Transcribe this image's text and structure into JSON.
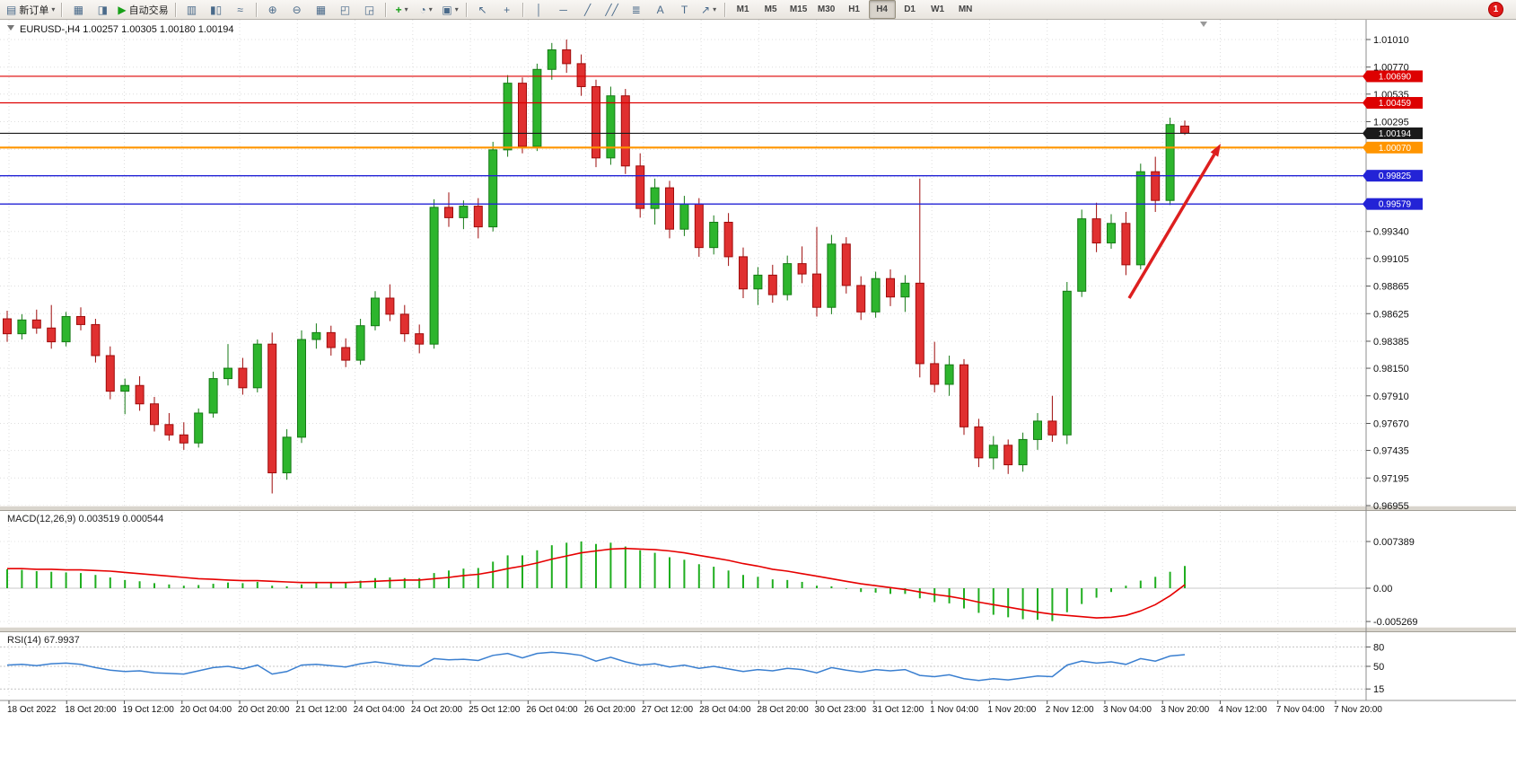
{
  "toolbar": {
    "new_order_label": "新订单",
    "autotrading_label": "自动交易",
    "timeframes": [
      "M1",
      "M5",
      "M15",
      "M30",
      "H1",
      "H4",
      "D1",
      "W1",
      "MN"
    ],
    "active_timeframe": "H4",
    "notification_count": "1",
    "icons": {
      "new_order": "▤",
      "charts_grid": "▦",
      "market_watch": "◨",
      "autotrading_play": "▶",
      "bar_chart": "▥",
      "candle_chart": "▮▯",
      "line_chart": "≈",
      "zoom_in": "⊕",
      "zoom_out": "⊖",
      "tile_windows": "▦",
      "indicator_window": "◰",
      "objects_window": "◲",
      "add_indicator": "+",
      "periods": "◔",
      "templates": "▣",
      "cursor": "↖",
      "crosshair": "+",
      "vline": "│",
      "hline": "─",
      "trendline": "╱",
      "channel": "╱╱",
      "fibonacci": "≣",
      "text": "A",
      "label": "T",
      "arrows": "↗",
      "dropdown": "▾"
    }
  },
  "chart_data": {
    "type": "candlestick",
    "symbol": "EURUSD",
    "timeframe": "H4",
    "title": "EURUSD-,H4",
    "ohlc_text": "1.00257 1.00305 1.00180 1.00194",
    "ohlc_header": {
      "open": "1.00257",
      "high": "1.00305",
      "low": "1.00180",
      "close": "1.00194"
    },
    "price_ticks": [
      "1.01010",
      "1.00770",
      "1.00535",
      "1.00295",
      "1.00055",
      "0.99815",
      "0.99580",
      "0.99340",
      "0.99105",
      "0.98865",
      "0.98625",
      "0.98385",
      "0.98150",
      "0.97910",
      "0.97670",
      "0.97435",
      "0.97195",
      "0.96955"
    ],
    "time_labels": [
      "18 Oct 2022",
      "18 Oct 20:00",
      "19 Oct 12:00",
      "20 Oct 04:00",
      "20 Oct 20:00",
      "21 Oct 12:00",
      "24 Oct 04:00",
      "24 Oct 20:00",
      "25 Oct 12:00",
      "26 Oct 04:00",
      "26 Oct 20:00",
      "27 Oct 12:00",
      "28 Oct 04:00",
      "28 Oct 20:00",
      "30 Oct 23:00",
      "31 Oct 12:00",
      "1 Nov 04:00",
      "1 Nov 20:00",
      "2 Nov 12:00",
      "3 Nov 04:00",
      "3 Nov 20:00",
      "4 Nov 12:00",
      "7 Nov 04:00",
      "7 Nov 20:00"
    ],
    "levels": [
      {
        "price": 1.0069,
        "label": "1.00690",
        "color": "#dd0000",
        "width": 1.2
      },
      {
        "price": 1.00459,
        "label": "1.00459",
        "color": "#dd0000",
        "width": 1.2
      },
      {
        "price": 1.00194,
        "label": "1.00194",
        "color": "#1a1a1a",
        "width": 1.2
      },
      {
        "price": 1.0007,
        "label": "1.00070",
        "color": "#ff9500",
        "width": 2.2
      },
      {
        "price": 0.99825,
        "label": "0.99825",
        "color": "#2323d6",
        "width": 1.4
      },
      {
        "price": 0.99579,
        "label": "0.99579",
        "color": "#2323d6",
        "width": 1.4
      }
    ],
    "arrow": {
      "from": [
        1258,
        310
      ],
      "to": [
        1360,
        138
      ],
      "color": "#dd1f1f"
    },
    "candles": [
      [
        0.9858,
        0.9865,
        0.9838,
        0.9845
      ],
      [
        0.9845,
        0.9862,
        0.984,
        0.9857
      ],
      [
        0.9857,
        0.9866,
        0.9845,
        0.985
      ],
      [
        0.985,
        0.987,
        0.9832,
        0.9838
      ],
      [
        0.9838,
        0.9864,
        0.9834,
        0.986
      ],
      [
        0.986,
        0.9868,
        0.9848,
        0.9853
      ],
      [
        0.9853,
        0.9858,
        0.982,
        0.9826
      ],
      [
        0.9826,
        0.9834,
        0.9788,
        0.9795
      ],
      [
        0.9795,
        0.9806,
        0.9775,
        0.98
      ],
      [
        0.98,
        0.9808,
        0.9778,
        0.9784
      ],
      [
        0.9784,
        0.979,
        0.976,
        0.9766
      ],
      [
        0.9766,
        0.9776,
        0.9752,
        0.9757
      ],
      [
        0.9757,
        0.9768,
        0.9744,
        0.975
      ],
      [
        0.975,
        0.978,
        0.9746,
        0.9776
      ],
      [
        0.9776,
        0.9812,
        0.9772,
        0.9806
      ],
      [
        0.9806,
        0.9836,
        0.98,
        0.9815
      ],
      [
        0.9815,
        0.9824,
        0.9792,
        0.9798
      ],
      [
        0.9798,
        0.984,
        0.9794,
        0.9836
      ],
      [
        0.9836,
        0.9846,
        0.9706,
        0.9724
      ],
      [
        0.9724,
        0.9762,
        0.9718,
        0.9755
      ],
      [
        0.9755,
        0.9848,
        0.975,
        0.984
      ],
      [
        0.984,
        0.9854,
        0.9832,
        0.9846
      ],
      [
        0.9846,
        0.9852,
        0.9826,
        0.9833
      ],
      [
        0.9833,
        0.9841,
        0.9816,
        0.9822
      ],
      [
        0.9822,
        0.9858,
        0.9818,
        0.9852
      ],
      [
        0.9852,
        0.9882,
        0.9848,
        0.9876
      ],
      [
        0.9876,
        0.9888,
        0.9856,
        0.9862
      ],
      [
        0.9862,
        0.987,
        0.9838,
        0.9845
      ],
      [
        0.9845,
        0.9853,
        0.9828,
        0.9836
      ],
      [
        0.9836,
        0.9962,
        0.9832,
        0.9955
      ],
      [
        0.9955,
        0.9968,
        0.9938,
        0.9946
      ],
      [
        0.9946,
        0.9961,
        0.9936,
        0.9956
      ],
      [
        0.9956,
        0.9963,
        0.9928,
        0.9938
      ],
      [
        0.9938,
        1.0012,
        0.9934,
        1.0005
      ],
      [
        1.0005,
        1.007,
        0.9999,
        1.0063
      ],
      [
        1.0063,
        1.0068,
        1.0002,
        1.0008
      ],
      [
        1.0008,
        1.008,
        1.0004,
        1.0075
      ],
      [
        1.0075,
        1.0098,
        1.0066,
        1.0092
      ],
      [
        1.0092,
        1.0101,
        1.0072,
        1.008
      ],
      [
        1.008,
        1.0088,
        1.0052,
        1.006
      ],
      [
        1.006,
        1.0066,
        0.999,
        0.9998
      ],
      [
        0.9998,
        1.006,
        0.9992,
        1.0052
      ],
      [
        1.0052,
        1.0058,
        0.9984,
        0.9991
      ],
      [
        0.9991,
        1.0002,
        0.9946,
        0.9954
      ],
      [
        0.9954,
        0.998,
        0.994,
        0.9972
      ],
      [
        0.9972,
        0.9978,
        0.9928,
        0.9936
      ],
      [
        0.9936,
        0.9965,
        0.993,
        0.9958
      ],
      [
        0.9958,
        0.9963,
        0.9912,
        0.992
      ],
      [
        0.992,
        0.9948,
        0.9914,
        0.9942
      ],
      [
        0.9942,
        0.995,
        0.9904,
        0.9912
      ],
      [
        0.9912,
        0.992,
        0.9876,
        0.9884
      ],
      [
        0.9884,
        0.9903,
        0.987,
        0.9896
      ],
      [
        0.9896,
        0.9905,
        0.9872,
        0.9879
      ],
      [
        0.9879,
        0.9913,
        0.9874,
        0.9906
      ],
      [
        0.9906,
        0.9921,
        0.9889,
        0.9897
      ],
      [
        0.9897,
        0.9938,
        0.986,
        0.9868
      ],
      [
        0.9868,
        0.9931,
        0.9862,
        0.9923
      ],
      [
        0.9923,
        0.9929,
        0.988,
        0.9887
      ],
      [
        0.9887,
        0.9895,
        0.9857,
        0.9864
      ],
      [
        0.9864,
        0.9899,
        0.9859,
        0.9893
      ],
      [
        0.9893,
        0.9901,
        0.9869,
        0.9877
      ],
      [
        0.9877,
        0.9896,
        0.9864,
        0.9889
      ],
      [
        0.9889,
        0.998,
        0.9807,
        0.9819
      ],
      [
        0.9819,
        0.9838,
        0.9794,
        0.9801
      ],
      [
        0.9801,
        0.9826,
        0.9791,
        0.9818
      ],
      [
        0.9818,
        0.9823,
        0.9757,
        0.9764
      ],
      [
        0.9764,
        0.9771,
        0.9729,
        0.9737
      ],
      [
        0.9737,
        0.9756,
        0.9727,
        0.9748
      ],
      [
        0.9748,
        0.9753,
        0.9723,
        0.9731
      ],
      [
        0.9731,
        0.9759,
        0.9725,
        0.9753
      ],
      [
        0.9753,
        0.9776,
        0.9744,
        0.9769
      ],
      [
        0.9769,
        0.9791,
        0.9751,
        0.9757
      ],
      [
        0.9757,
        0.989,
        0.9749,
        0.9882
      ],
      [
        0.9882,
        0.9953,
        0.9877,
        0.9945
      ],
      [
        0.9945,
        0.9959,
        0.9916,
        0.9924
      ],
      [
        0.9924,
        0.9949,
        0.9919,
        0.9941
      ],
      [
        0.9941,
        0.9951,
        0.9896,
        0.9905
      ],
      [
        0.9905,
        0.9993,
        0.9901,
        0.9986
      ],
      [
        0.9986,
        0.9999,
        0.9951,
        0.9961
      ],
      [
        0.9961,
        1.0033,
        0.9957,
        1.0027
      ],
      [
        1.00257,
        1.00305,
        1.0018,
        1.00194
      ]
    ],
    "macd": {
      "label": "MACD(12,26,9) 0.003519 0.000544",
      "axis": [
        {
          "label": "0.007389",
          "value": 0.007389
        },
        {
          "label": "0.00",
          "value": 0
        },
        {
          "label": "-0.005269",
          "value": -0.005269
        }
      ],
      "values": [
        0.003,
        0.0029,
        0.0027,
        0.0026,
        0.0025,
        0.0024,
        0.0021,
        0.0017,
        0.0013,
        0.0011,
        0.0008,
        0.0006,
        0.0004,
        0.0005,
        0.0007,
        0.0009,
        0.0008,
        0.001,
        0.0004,
        0.0003,
        0.0006,
        0.0009,
        0.001,
        0.0009,
        0.0012,
        0.0016,
        0.0017,
        0.0016,
        0.0016,
        0.0024,
        0.0028,
        0.0031,
        0.0032,
        0.0042,
        0.0052,
        0.0052,
        0.006,
        0.0068,
        0.0072,
        0.0074,
        0.007,
        0.0072,
        0.0066,
        0.006,
        0.0056,
        0.0049,
        0.0045,
        0.0038,
        0.0034,
        0.0028,
        0.0021,
        0.0018,
        0.0014,
        0.0013,
        0.001,
        0.0004,
        0.0003,
        -0.0001,
        -0.0006,
        -0.0007,
        -0.0009,
        -0.0009,
        -0.0016,
        -0.0022,
        -0.0024,
        -0.0032,
        -0.0039,
        -0.0042,
        -0.0046,
        -0.0049,
        -0.005,
        -0.0052,
        -0.0038,
        -0.0025,
        -0.0015,
        -0.0006,
        0.0004,
        0.0012,
        0.0018,
        0.0026,
        0.003519
      ],
      "signal": [
        0.0031,
        0.0031,
        0.003,
        0.003,
        0.0029,
        0.0029,
        0.0028,
        0.0027,
        0.0025,
        0.0023,
        0.0021,
        0.0019,
        0.0017,
        0.0015,
        0.0014,
        0.0013,
        0.0012,
        0.0012,
        0.0011,
        0.001,
        0.0009,
        0.0009,
        0.0009,
        0.0009,
        0.001,
        0.0011,
        0.0012,
        0.0013,
        0.0013,
        0.0015,
        0.0017,
        0.002,
        0.0022,
        0.0026,
        0.0031,
        0.0035,
        0.004,
        0.0046,
        0.0051,
        0.0056,
        0.0059,
        0.0062,
        0.0063,
        0.0062,
        0.0061,
        0.0059,
        0.0056,
        0.0052,
        0.0048,
        0.0044,
        0.0039,
        0.0035,
        0.003,
        0.0027,
        0.0023,
        0.0019,
        0.0015,
        0.0011,
        0.0007,
        0.0004,
        0.0001,
        -0.0002,
        -0.0006,
        -0.001,
        -0.0013,
        -0.0017,
        -0.0022,
        -0.0026,
        -0.003,
        -0.0034,
        -0.0038,
        -0.0041,
        -0.0043,
        -0.0045,
        -0.0047,
        -0.0046,
        -0.0043,
        -0.0036,
        -0.0026,
        -0.0012,
        0.000544
      ]
    },
    "rsi": {
      "label": "RSI(14) 67.9937",
      "levels": [
        {
          "label": "80",
          "value": 80
        },
        {
          "label": "50",
          "value": 50
        },
        {
          "label": "15",
          "value": 15
        }
      ],
      "values": [
        52,
        53,
        51,
        54,
        55,
        53,
        48,
        44,
        42,
        43,
        40,
        39,
        38,
        43,
        48,
        50,
        46,
        52,
        38,
        42,
        52,
        53,
        51,
        49,
        54,
        57,
        54,
        51,
        50,
        62,
        60,
        61,
        59,
        67,
        70,
        63,
        70,
        72,
        70,
        67,
        58,
        64,
        57,
        52,
        54,
        49,
        52,
        47,
        50,
        46,
        42,
        45,
        43,
        47,
        45,
        40,
        48,
        44,
        41,
        45,
        43,
        45,
        36,
        34,
        37,
        31,
        28,
        31,
        29,
        32,
        35,
        34,
        52,
        58,
        55,
        57,
        53,
        62,
        58,
        66,
        67.99
      ]
    },
    "colors": {
      "up": "#2db52d",
      "up_border": "#157a15",
      "down": "#e03030",
      "down_border": "#9e0b0b",
      "grid": "#dedede",
      "macd_hist": "#1fae1f",
      "macd_signal": "#e60000",
      "rsi_line": "#3a7fd0"
    }
  }
}
